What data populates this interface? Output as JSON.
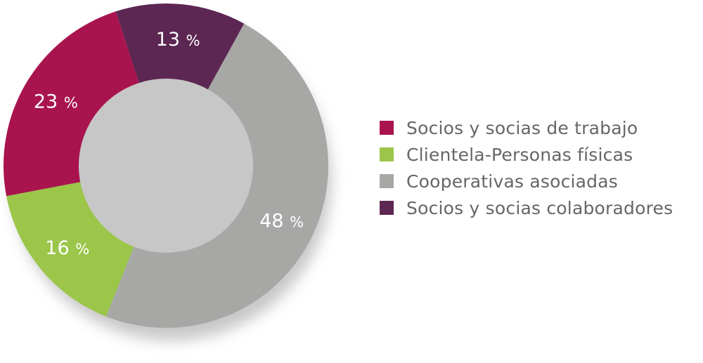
{
  "chart_data": {
    "type": "pie",
    "donut": true,
    "start_angle_deg": 342,
    "order": "clockwise",
    "legend_position": "right",
    "slices": [
      {
        "label": "Socios y socias colaboradores",
        "value": 13,
        "color": "#5c2752",
        "value_text": "13",
        "unit": "%"
      },
      {
        "label": "Cooperativas asociadas",
        "value": 48,
        "color": "#a7a8a6",
        "value_text": "48",
        "unit": "%"
      },
      {
        "label": "Clientela-Personas físicas",
        "value": 16,
        "color": "#9bc64a",
        "value_text": "16",
        "unit": "%"
      },
      {
        "label": "Socios y socias de trabajo",
        "value": 23,
        "color": "#a9144e",
        "value_text": "23",
        "unit": "%"
      }
    ],
    "legend": [
      {
        "label": "Socios y socias de trabajo",
        "color": "#a9144e"
      },
      {
        "label": "Clientela-Personas físicas",
        "color": "#9bc64a"
      },
      {
        "label": "Cooperativas asociadas",
        "color": "#a7a8a6"
      },
      {
        "label": "Socios y socias colaboradores",
        "color": "#5c2752"
      }
    ]
  }
}
